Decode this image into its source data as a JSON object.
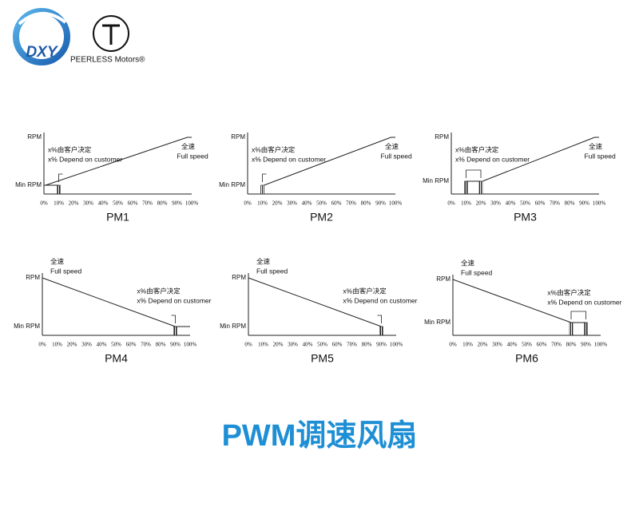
{
  "header": {
    "logo_text": "DXY",
    "brand": "PEERLESS Motors®"
  },
  "axis": {
    "x_ticks": [
      "0%",
      "10%",
      "20%",
      "30%",
      "40%",
      "50%",
      "60%",
      "70%",
      "80%",
      "90%",
      "100%"
    ],
    "rpm": "RPM",
    "min_rpm": "Min RPM"
  },
  "notes": {
    "full_cn": "全速",
    "full_en": "Full speed",
    "x_cn": "x%由客户决定",
    "x_en": "x%  Depend on customer"
  },
  "charts": [
    {
      "label": "PM1"
    },
    {
      "label": "PM2"
    },
    {
      "label": "PM3"
    },
    {
      "label": "PM4"
    },
    {
      "label": "PM5"
    },
    {
      "label": "PM6"
    }
  ],
  "title": "PWM调速风扇"
}
